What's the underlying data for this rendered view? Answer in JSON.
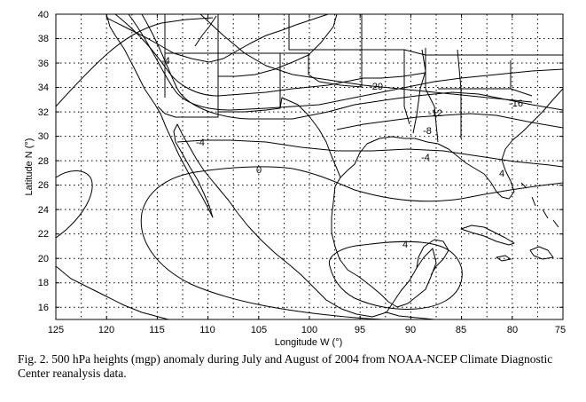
{
  "map": {
    "x_axis": {
      "title": "Longitude W (°)",
      "ticks": [
        "125",
        "120",
        "115",
        "110",
        "105",
        "100",
        "95",
        "90",
        "85",
        "80",
        "75"
      ]
    },
    "y_axis": {
      "title": "Latitude N (°)",
      "ticks": [
        "16",
        "18",
        "20",
        "22",
        "24",
        "26",
        "28",
        "30",
        "32",
        "34",
        "36",
        "38",
        "40"
      ]
    },
    "extent": {
      "lon_west": 125,
      "lon_east": 75,
      "lat_south": 15,
      "lat_north": 40
    },
    "grid": "dotted",
    "contour_labels": [
      "-20",
      "-16",
      "-12",
      "-8",
      "-4",
      "-4",
      "0",
      "4",
      "4",
      "-4"
    ]
  },
  "caption": "Fig. 2. 500 hPa heights (mgp) anomaly during July and August of 2004 from NOAA-NCEP Climate Diagnostic Center reanalysis data."
}
